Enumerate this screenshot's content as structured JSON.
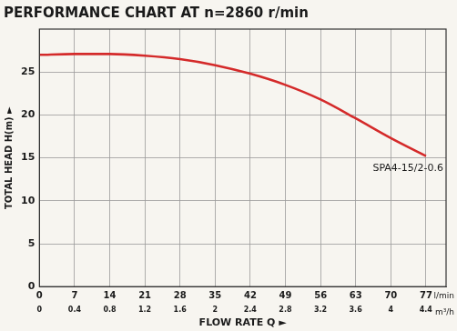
{
  "chart_data": {
    "type": "line",
    "title": "PERFORMANCE CHART AT n=2860 r/min",
    "x_label": "FLOW RATE Q ►",
    "y_label": "TOTAL HEAD H(m) ►",
    "annotations": [
      "l/min",
      "m³/h"
    ],
    "x": [
      0,
      7,
      14,
      21,
      28,
      35,
      42,
      49,
      56,
      63,
      70,
      77
    ],
    "series": [
      {
        "name": "SPA4-15/2-0.6",
        "color": "#d42a2a",
        "values": [
          27,
          27.1,
          27.1,
          26.9,
          26.5,
          25.8,
          24.8,
          23.5,
          21.8,
          19.6,
          17.3,
          15.2
        ]
      }
    ],
    "xlim": [
      0,
      81
    ],
    "xticks": [
      0,
      7,
      14,
      21,
      28,
      35,
      42,
      49,
      56,
      63,
      70,
      77
    ],
    "x2lim": [
      0,
      4.63
    ],
    "x2ticks": [
      0,
      0.4,
      0.8,
      1.2,
      1.6,
      2,
      2.4,
      2.8,
      3.2,
      3.6,
      4,
      4.4
    ],
    "ylim": [
      0,
      30
    ],
    "yticks": [
      0,
      5,
      10,
      15,
      20,
      25
    ],
    "grid": true
  }
}
